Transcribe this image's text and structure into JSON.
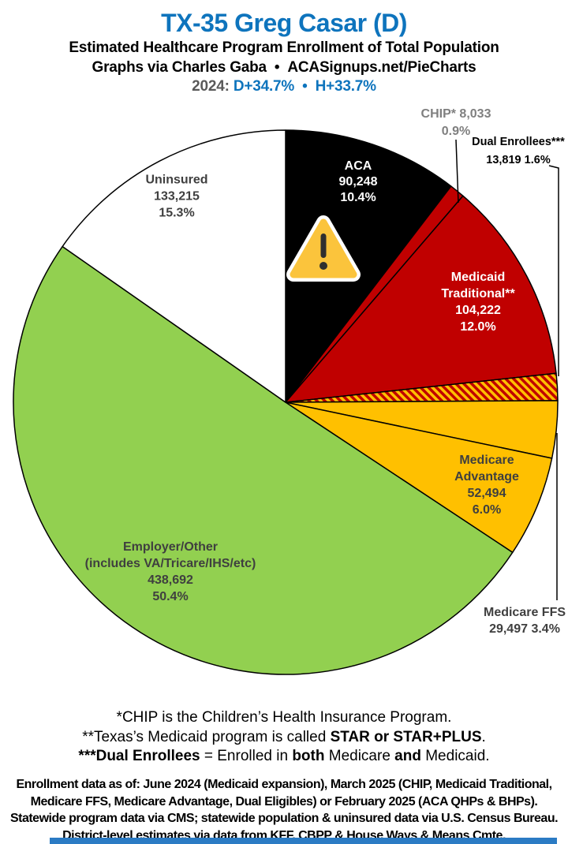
{
  "header": {
    "title": "TX-35 Greg Casar (D)",
    "subtitle1": "Estimated Healthcare Program Enrollment of Total Population",
    "subtitle2_left": "Graphs via Charles Gaba",
    "subtitle2_bullet": "•",
    "subtitle2_right": "ACASignups.net/PieCharts",
    "partisan_year": "2024:",
    "partisan_d": "D+34.7%",
    "partisan_bullet": "•",
    "partisan_h": "H+33.7%"
  },
  "chart_data": {
    "type": "pie",
    "title": "Estimated Healthcare Program Enrollment of Total Population",
    "start_angle_deg": 0,
    "direction": "clockwise",
    "segments": [
      {
        "name": "ACA",
        "value": "90,248",
        "pct": "10.4%",
        "value_num": 90248,
        "pct_num": 10.4,
        "color": "#000000"
      },
      {
        "name": "CHIP*",
        "value": "8,033",
        "pct": "0.9%",
        "value_num": 8033,
        "pct_num": 0.9,
        "color": "#C00000"
      },
      {
        "name": "Medicaid Traditional**",
        "value": "104,222",
        "pct": "12.0%",
        "value_num": 104222,
        "pct_num": 12.0,
        "color": "#C00000"
      },
      {
        "name": "Dual Enrollees***",
        "value": "13,819",
        "pct": "1.6%",
        "value_num": 13819,
        "pct_num": 1.6,
        "color": "hatch"
      },
      {
        "name": "Medicare FFS",
        "value": "29,497",
        "pct": "3.4%",
        "value_num": 29497,
        "pct_num": 3.4,
        "color": "#FFC000"
      },
      {
        "name": "Medicare Advantage",
        "value": "52,494",
        "pct": "6.0%",
        "value_num": 52494,
        "pct_num": 6.0,
        "color": "#FFC000"
      },
      {
        "name": "Employer/Other",
        "sub": "(includes VA/Tricare/IHS/etc)",
        "value": "438,692",
        "pct": "50.4%",
        "value_num": 438692,
        "pct_num": 50.4,
        "color": "#92D050"
      },
      {
        "name": "Uninsured",
        "value": "133,215",
        "pct": "15.3%",
        "value_num": 133215,
        "pct_num": 15.3,
        "color": "#FFFFFF"
      }
    ],
    "hatch_colors": {
      "base": "#FFC000",
      "stripe": "#C00000"
    }
  },
  "icons": {
    "warning": "warning-triangle"
  },
  "footnotes": {
    "line1": "*CHIP is the Children’s Health Insurance Program.",
    "line2_a": "**Texas’s Medicaid program is called ",
    "line2_b": "STAR or STAR+PLUS",
    "line2_c": ".",
    "line3_a": "***Dual Enrollees",
    "line3_b": " = Enrolled in ",
    "line3_c": "both",
    "line3_d": " Medicare ",
    "line3_e": "and",
    "line3_f": " Medicaid."
  },
  "sources": {
    "line1": "Enrollment data as of: June 2024 (Medicaid expansion), March 2025 (CHIP, Medicaid Traditional,",
    "line2": "Medicare FFS, Medicare Advantage, Dual Eligibles) or February 2025 (ACA QHPs & BHPs).",
    "line3": "Statewide program data via CMS; statewide population & uninsured data via U.S. Census Bureau.",
    "line4": "District-level estimates via data from KFF, CBPP & House Ways & Means Cmte."
  },
  "colors": {
    "accent_blue": "#0E74BD",
    "year_gray": "#595959",
    "label_gray": "#3F3F3F",
    "chip_label_gray": "#7F7F7F",
    "red": "#C00000",
    "gold": "#FFC000",
    "green": "#92D050",
    "warning_fill": "#FBC43C",
    "bottom_bar_blue": "#2B7BC4"
  }
}
